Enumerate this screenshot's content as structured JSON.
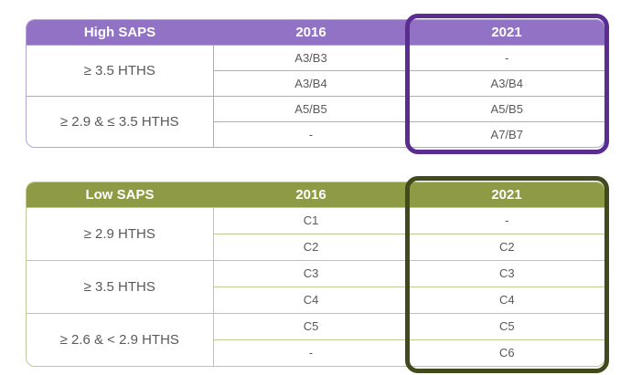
{
  "colors": {
    "high_saps_header_bg": "#9272c4",
    "high_saps_grid": "#b3a4da",
    "high_saps_highlight_border": "#5c2d91",
    "low_saps_header_bg": "#8e9b44",
    "low_saps_grid": "#c2c696",
    "low_saps_highlight_border": "#404a1c",
    "header_text": "#ffffff",
    "cell_text": "#595959"
  },
  "tables": [
    {
      "id": "high-saps",
      "header": {
        "category": "High SAPS",
        "col2016": "2016",
        "col2021": "2021"
      },
      "highlighted_column": "2021",
      "groups": [
        {
          "label": "≥ 3.5 HTHS",
          "rows": [
            {
              "y2016": "A3/B3",
              "y2021": "-"
            },
            {
              "y2016": "A3/B4",
              "y2021": "A3/B4"
            }
          ]
        },
        {
          "label": "≥ 2.9 & ≤ 3.5 HTHS",
          "rows": [
            {
              "y2016": "A5/B5",
              "y2021": "A5/B5"
            },
            {
              "y2016": "-",
              "y2021": "A7/B7"
            }
          ]
        }
      ]
    },
    {
      "id": "low-saps",
      "header": {
        "category": "Low SAPS",
        "col2016": "2016",
        "col2021": "2021"
      },
      "highlighted_column": "2021",
      "groups": [
        {
          "label": "≥ 2.9 HTHS",
          "rows": [
            {
              "y2016": "C1",
              "y2021": "-"
            },
            {
              "y2016": "C2",
              "y2021": "C2"
            }
          ]
        },
        {
          "label": "≥ 3.5 HTHS",
          "rows": [
            {
              "y2016": "C3",
              "y2021": "C3"
            },
            {
              "y2016": "C4",
              "y2021": "C4"
            }
          ]
        },
        {
          "label": "≥ 2.6 & < 2.9 HTHS",
          "rows": [
            {
              "y2016": "C5",
              "y2021": "C5"
            },
            {
              "y2016": "-",
              "y2021": "C6"
            }
          ]
        }
      ]
    }
  ]
}
